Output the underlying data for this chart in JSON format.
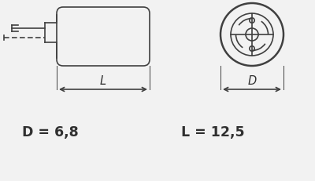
{
  "bg_color": "#f2f2f2",
  "line_color": "#404040",
  "text_color": "#303030",
  "label_D": "D = 6,8",
  "label_L": "L = 12,5",
  "label_fontsize": 12.5,
  "dim_letter_fontsize": 10.5
}
